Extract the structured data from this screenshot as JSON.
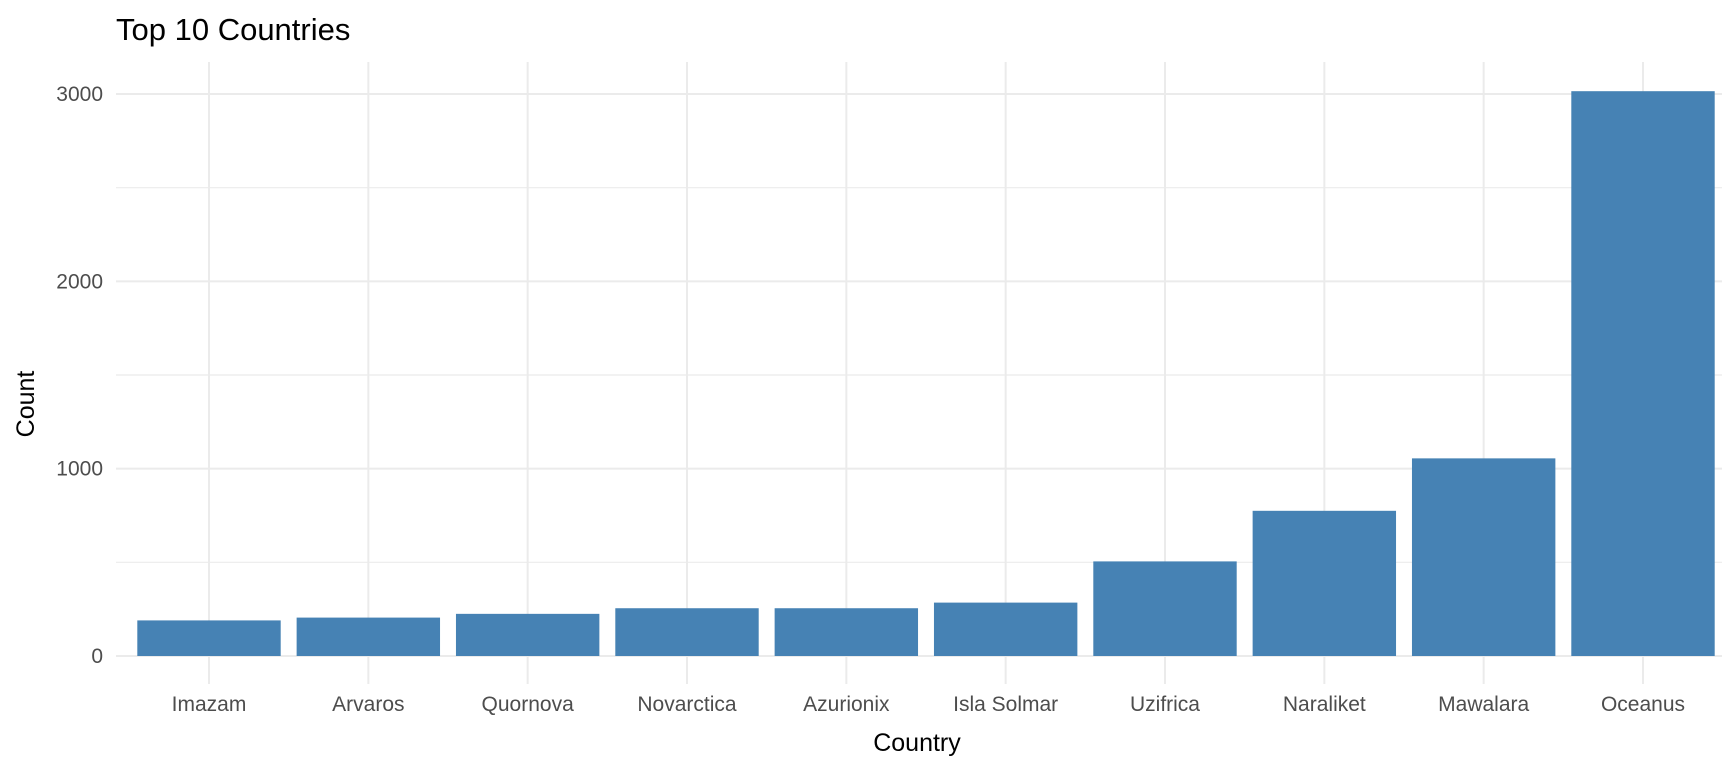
{
  "chart_data": {
    "type": "bar",
    "title": "Top 10 Countries",
    "xlabel": "Country",
    "ylabel": "Count",
    "categories": [
      "Imazam",
      "Arvaros",
      "Quornova",
      "Novarctica",
      "Azurionix",
      "Isla Solmar",
      "Uzifrica",
      "Naraliket",
      "Mawalara",
      "Oceanus"
    ],
    "values": [
      190,
      205,
      225,
      255,
      255,
      285,
      505,
      775,
      1055,
      3015
    ],
    "yticks": [
      0,
      1000,
      2000,
      3000
    ],
    "ytick_labels": [
      "0",
      "1000",
      "2000",
      "3000"
    ],
    "ylim": [
      -100,
      3170
    ],
    "grid": true,
    "legend": "none",
    "colors": {
      "bar": "#4682b4",
      "grid": "#ebebeb",
      "background": "#ffffff"
    }
  }
}
